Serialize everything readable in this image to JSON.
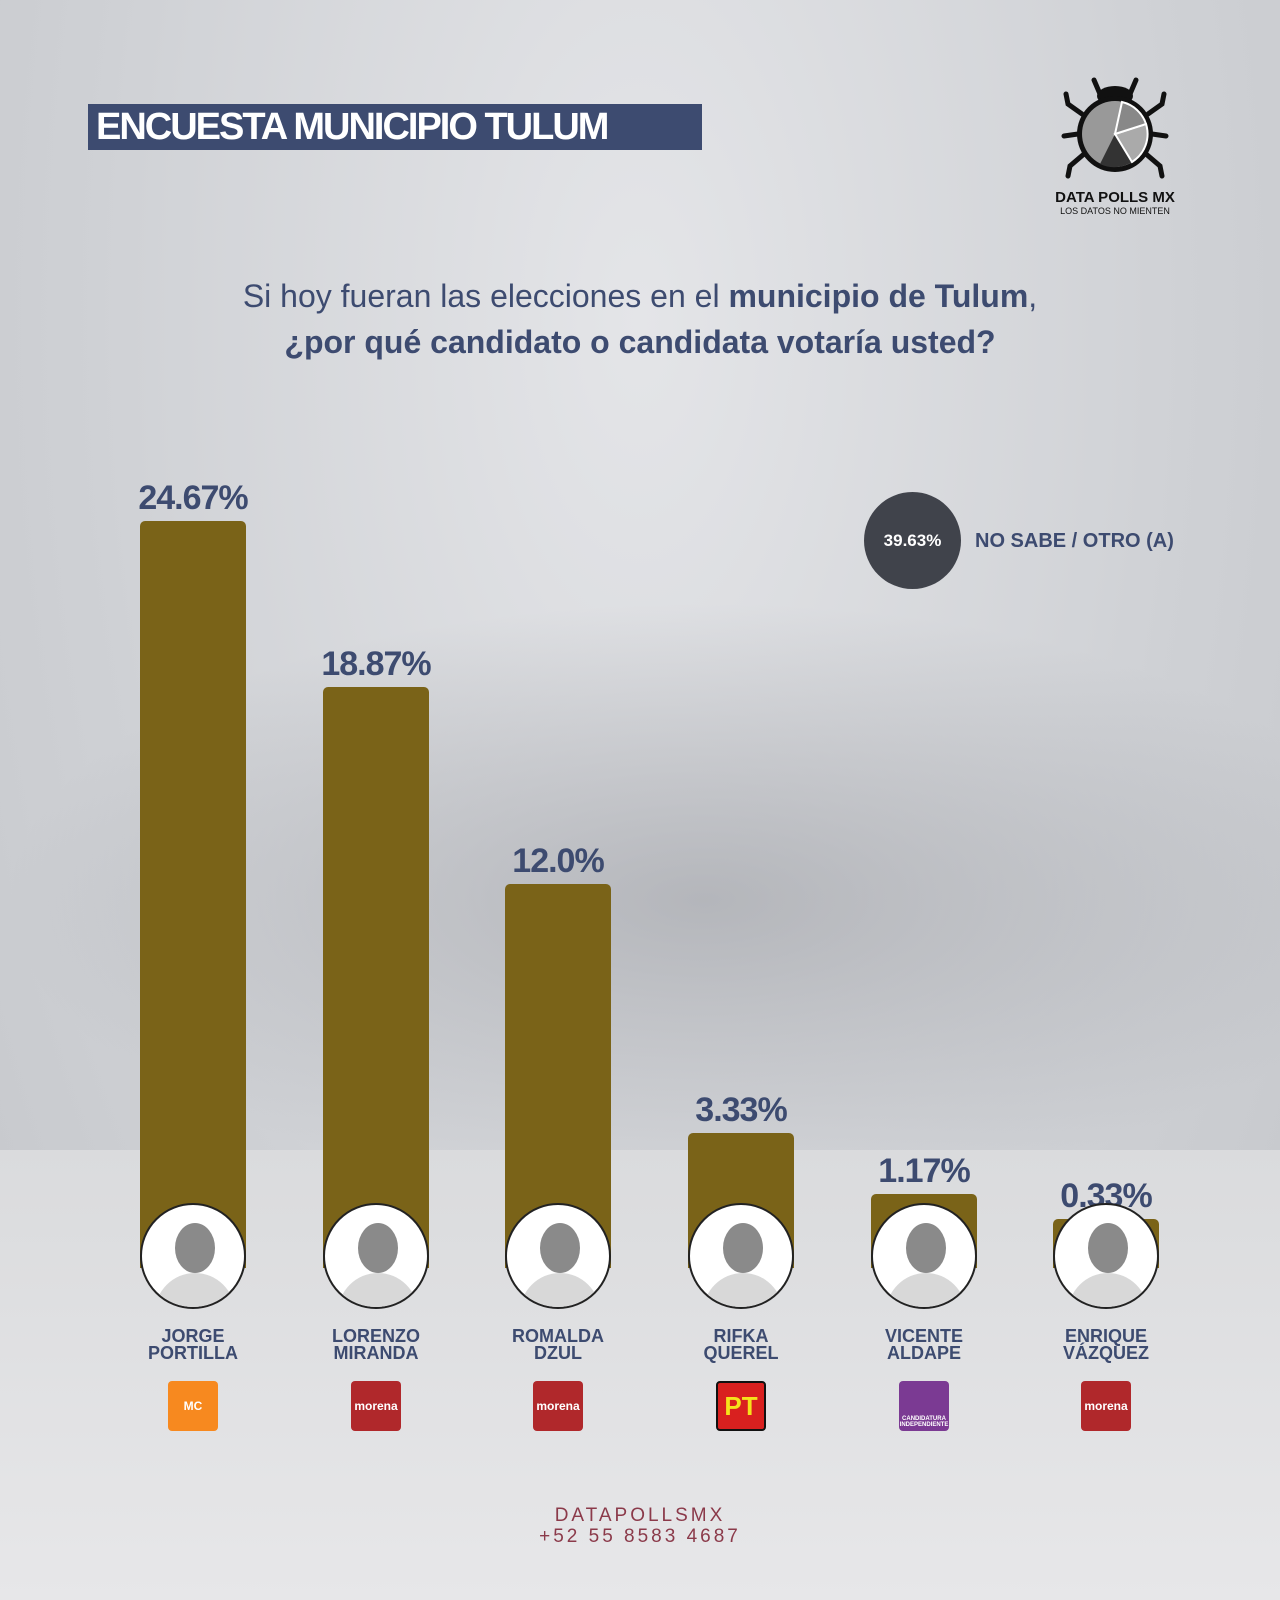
{
  "title": "ENCUESTA MUNICIPIO TULUM",
  "logo": {
    "name": "DATA POLLS MX",
    "tagline": "LOS DATOS NO MIENTEN"
  },
  "question": {
    "line1_pre": "Si hoy fueran las elecciones en el ",
    "line1_bold": "municipio de Tulum",
    "line1_post": ",",
    "line2": "¿por qué candidato o candidata votaría usted?"
  },
  "legend": {
    "value": "39.63%",
    "label": "NO SABE / OTRO (A)"
  },
  "chart_data": {
    "type": "bar",
    "title": "¿por qué candidato o candidata votaría usted?",
    "categories": [
      "JORGE PORTILLA",
      "LORENZO MIRANDA",
      "ROMALDA DZUL",
      "RIFKA QUEREL",
      "VICENTE ALDAPE",
      "ENRIQUE VÁZQUEZ"
    ],
    "values": [
      24.67,
      18.87,
      12.0,
      3.33,
      1.17,
      0.33
    ],
    "labels": [
      "24.67%",
      "18.87%",
      "12.0%",
      "3.33%",
      "1.17%",
      "0.33%"
    ],
    "names": [
      [
        "JORGE",
        "PORTILLA"
      ],
      [
        "LORENZO",
        "MIRANDA"
      ],
      [
        "ROMALDA",
        "DZUL"
      ],
      [
        "RIFKA",
        "QUEREL"
      ],
      [
        "VICENTE",
        "ALDAPE"
      ],
      [
        "ENRIQUE",
        "VÁZQUEZ"
      ]
    ],
    "parties": [
      "MC",
      "morena",
      "morena",
      "PT",
      "CANDIDATURA INDEPENDIENTE",
      "morena"
    ],
    "party_colors": [
      "#f7891f",
      "#b0282b",
      "#b0282b",
      "#d9201f",
      "#7b3a93",
      "#b0282b"
    ],
    "bar_color": "#7a6318",
    "other": {
      "label": "NO SABE / OTRO (A)",
      "value": 39.63
    }
  },
  "footer": {
    "handle": "DATAPOLLSMX",
    "phone": "+52 55 8583 4687"
  }
}
